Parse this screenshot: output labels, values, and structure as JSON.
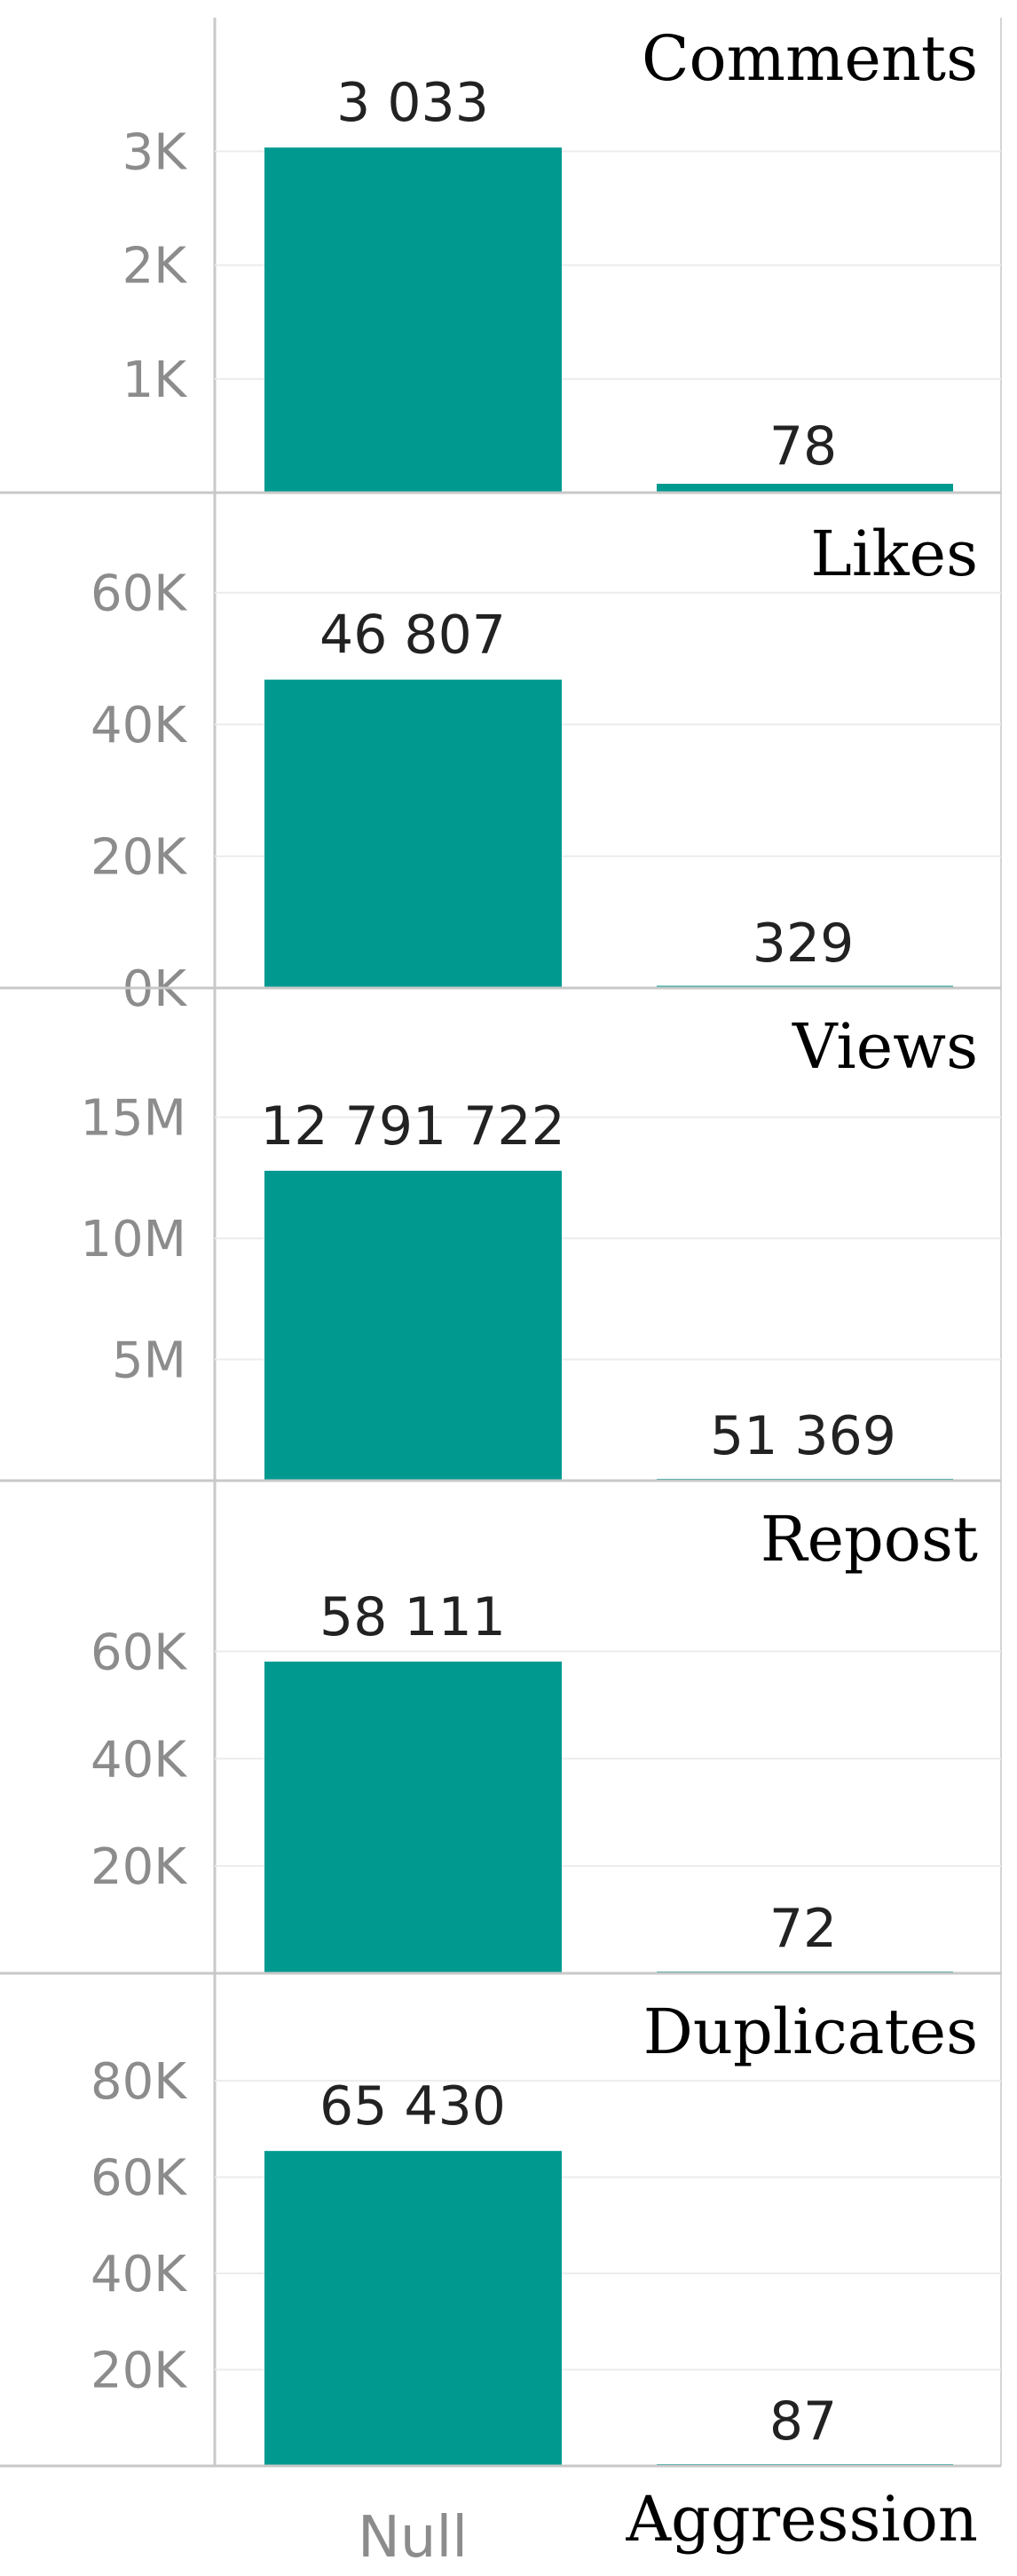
{
  "chart_data": {
    "type": "bar",
    "categories": [
      "Null",
      ""
    ],
    "xlabel": "Aggression",
    "bar_color": "#009990",
    "panels": [
      {
        "title": "Comments",
        "values": [
          3033,
          78
        ],
        "value_labels": [
          "3 033",
          "78"
        ],
        "ylim": [
          0,
          3300
        ],
        "ticks": [
          1000,
          2000,
          3000
        ],
        "tick_labels": [
          "1K",
          "2K",
          "3K"
        ]
      },
      {
        "title": "Likes",
        "values": [
          46807,
          329
        ],
        "value_labels": [
          "46 807",
          "329"
        ],
        "ylim": [
          0,
          57000
        ],
        "ticks": [
          0,
          20000,
          40000,
          60000
        ],
        "tick_labels": [
          "0K",
          "20K",
          "40K",
          "60K"
        ]
      },
      {
        "title": "Views",
        "values": [
          12791722,
          51369
        ],
        "value_labels": [
          "12 791 722",
          "51 369"
        ],
        "ylim": [
          0,
          15500000
        ],
        "ticks": [
          5000000,
          10000000,
          15000000
        ],
        "tick_labels": [
          "5M",
          "10M",
          "15M"
        ]
      },
      {
        "title": "Repost",
        "values": [
          58111,
          72
        ],
        "value_labels": [
          "58 111",
          "72"
        ],
        "ylim": [
          0,
          70000
        ],
        "ticks": [
          20000,
          40000,
          60000
        ],
        "tick_labels": [
          "20K",
          "40K",
          "60K"
        ]
      },
      {
        "title": "Duplicates",
        "values": [
          65430,
          87
        ],
        "value_labels": [
          "65 430",
          "87"
        ],
        "ylim": [
          0,
          78000
        ],
        "ticks": [
          20000,
          40000,
          60000,
          80000
        ],
        "tick_labels": [
          "20K",
          "40K",
          "60K",
          "80K"
        ]
      }
    ]
  }
}
